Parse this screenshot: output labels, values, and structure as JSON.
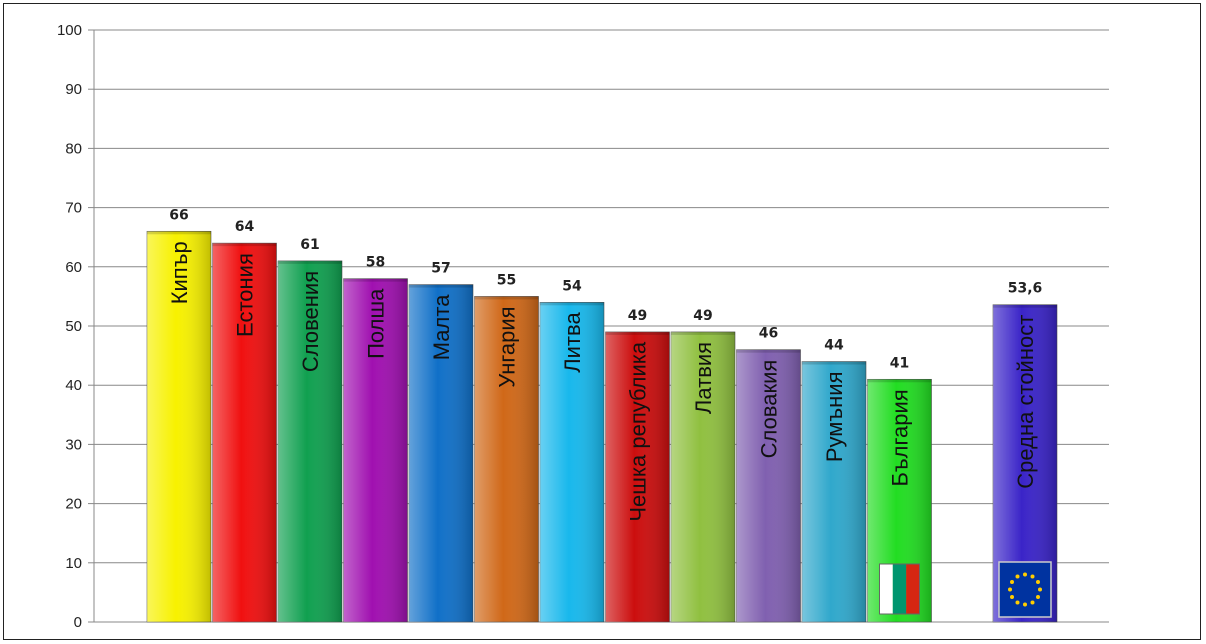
{
  "chart_data": {
    "type": "bar",
    "categories": [
      "Кипър",
      "Естония",
      "Словения",
      "Полша",
      "Малта",
      "Унгария",
      "Литва",
      "Чешка  република",
      "Латвия",
      "Словакия",
      "Румъния",
      "България",
      "Средна стойност"
    ],
    "values": [
      66,
      64,
      61,
      58,
      57,
      55,
      54,
      49,
      49,
      46,
      44,
      41,
      53.6
    ],
    "data_labels": [
      "66",
      "64",
      "61",
      "58",
      "57",
      "55",
      "54",
      "49",
      "49",
      "46",
      "44",
      "41",
      "53,6"
    ],
    "bar_colors": [
      "#f7f100",
      "#f01010",
      "#10a050",
      "#a010b0",
      "#1070c8",
      "#d06818",
      "#18b8ec",
      "#cc0e0e",
      "#90c040",
      "#8060b0",
      "#30a8cc",
      "#22dd22",
      "#3a24c8"
    ],
    "icons": {
      "11": "bulgaria-flag-icon",
      "12": "eu-flag-icon"
    },
    "flag_colors": {
      "bulgaria": [
        "#ffffff",
        "#00966e",
        "#d62612"
      ],
      "eu": [
        "#0033a0",
        "#ffcc00"
      ]
    },
    "ylim": [
      0,
      100
    ],
    "yticks": [
      0,
      10,
      20,
      30,
      40,
      50,
      60,
      70,
      80,
      90,
      100
    ],
    "grid": true,
    "xlabel": "",
    "ylabel": "",
    "title": ""
  }
}
